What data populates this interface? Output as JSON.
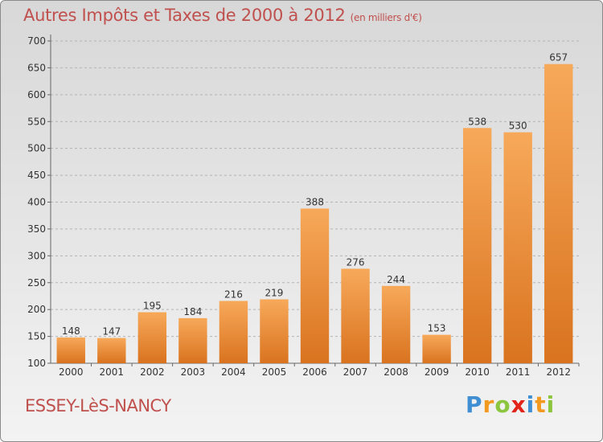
{
  "title": "Autres Impôts et Taxes de 2000 à 2012",
  "subtitle": "(en milliers d'€)",
  "commune": "ESSEY-LèS-NANCY",
  "brand": {
    "letters": [
      "P",
      "r",
      "o",
      "x",
      "i",
      "t",
      "i"
    ],
    "colors": [
      "#3f8fd2",
      "#f29a1f",
      "#8cc63f",
      "#e2231a",
      "#3f8fd2",
      "#f29a1f",
      "#8cc63f"
    ]
  },
  "colors": {
    "title": "#c0504d",
    "bar_light": "#f7a95a",
    "bar_dark": "#d9731f",
    "grid": "#b3b3b3"
  },
  "chart_data": {
    "type": "bar",
    "categories": [
      "2000",
      "2001",
      "2002",
      "2003",
      "2004",
      "2005",
      "2006",
      "2007",
      "2008",
      "2009",
      "2010",
      "2011",
      "2012"
    ],
    "values": [
      148,
      147,
      195,
      184,
      216,
      219,
      388,
      276,
      244,
      153,
      538,
      530,
      657
    ],
    "ylim": [
      100,
      700
    ],
    "yticks": [
      100,
      150,
      200,
      250,
      300,
      350,
      400,
      450,
      500,
      550,
      600,
      650,
      700
    ],
    "grid": true,
    "data_labels": true
  }
}
